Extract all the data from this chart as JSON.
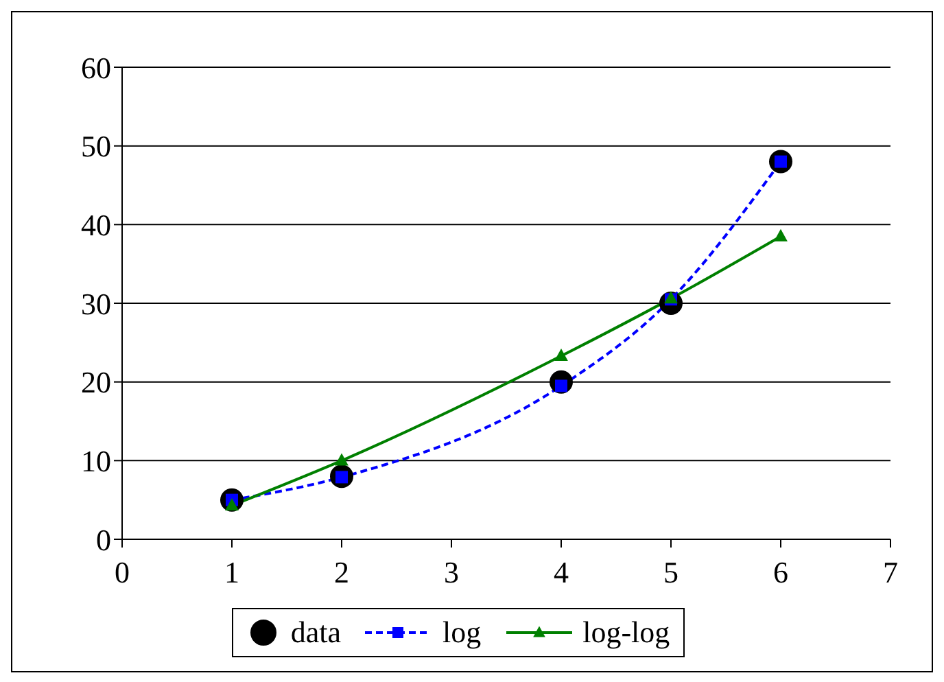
{
  "chart_data": {
    "type": "scatter",
    "xlim": [
      0,
      7
    ],
    "xticks": [
      0,
      1,
      2,
      3,
      4,
      5,
      6,
      7
    ],
    "ylim": [
      0,
      60
    ],
    "yticks": [
      0,
      10,
      20,
      30,
      40,
      50,
      60
    ],
    "grid": "y",
    "legend": "bottom",
    "series": [
      {
        "name": "data",
        "color": "#000000",
        "marker": "circle",
        "x": [
          1,
          2,
          4,
          5,
          6
        ],
        "values": [
          5,
          8,
          20,
          30,
          48
        ]
      },
      {
        "name": "log",
        "type": "line",
        "color": "#0000ff",
        "marker": "square",
        "line_style": "dashed",
        "x": [
          1,
          2,
          4,
          5,
          6
        ],
        "values": [
          5,
          7.9,
          19.5,
          30.5,
          48
        ]
      },
      {
        "name": "log-log",
        "type": "line",
        "color": "#008000",
        "marker": "triangle",
        "line_style": "solid",
        "x": [
          1,
          2,
          4,
          5,
          6
        ],
        "values": [
          4.3,
          10,
          23.3,
          30.6,
          38.5
        ]
      }
    ]
  }
}
